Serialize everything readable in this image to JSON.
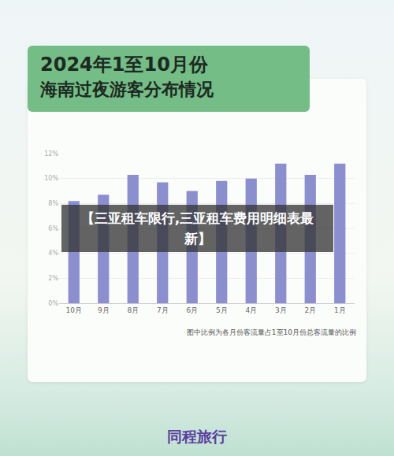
{
  "chart_data": {
    "type": "bar",
    "title": "2024年1至10月份",
    "subtitle": "海南过夜游客分布情况",
    "categories": [
      "10月",
      "9月",
      "8月",
      "7月",
      "6月",
      "5月",
      "4月",
      "3月",
      "2月",
      "1月"
    ],
    "values": [
      8.2,
      8.7,
      10.3,
      9.7,
      9.0,
      9.8,
      10.0,
      11.2,
      10.3,
      11.2
    ],
    "color": "#8b8fd0",
    "ylim": [
      0,
      12
    ],
    "yticks": [
      {
        "value": 0,
        "label": "0%"
      },
      {
        "value": 2,
        "label": "2%"
      },
      {
        "value": 4,
        "label": "4%"
      },
      {
        "value": 6,
        "label": "6%"
      },
      {
        "value": 8,
        "label": "8%"
      },
      {
        "value": 10,
        "label": "10%"
      },
      {
        "value": 12,
        "label": "12%"
      }
    ],
    "grid": true,
    "annotations": [
      "【三亚租车限行,三亚租车费用明细表最新】",
      "图中比例为各月份客流量占1至10月份总客流量的比例",
      "同程旅行"
    ]
  }
}
